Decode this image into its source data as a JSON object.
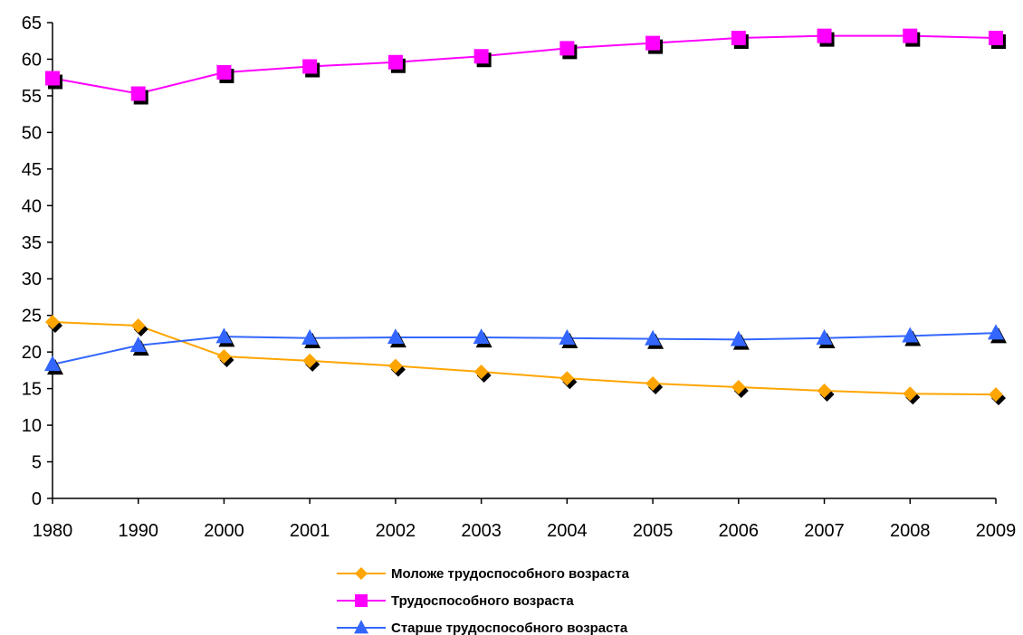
{
  "chart_data": {
    "type": "line",
    "title": "",
    "xlabel": "",
    "ylabel": "",
    "categories": [
      "1980",
      "1990",
      "2000",
      "2001",
      "2002",
      "2003",
      "2004",
      "2005",
      "2006",
      "2007",
      "2008",
      "2009"
    ],
    "ylim": [
      0,
      65
    ],
    "yticks": [
      0,
      5,
      10,
      15,
      20,
      25,
      30,
      35,
      40,
      45,
      50,
      55,
      60,
      65
    ],
    "grid": false,
    "legend_position": "bottom",
    "series": [
      {
        "name": "Моложе трудоспособного возраста",
        "marker": "diamond",
        "color": "#ffa500",
        "values": [
          24.1,
          23.6,
          19.4,
          18.8,
          18.1,
          17.3,
          16.4,
          15.7,
          15.2,
          14.7,
          14.3,
          14.2
        ]
      },
      {
        "name": "Трудоспособного возраста",
        "marker": "square",
        "color": "#ff00ff",
        "values": [
          57.4,
          55.3,
          58.2,
          59.0,
          59.6,
          60.4,
          61.5,
          62.2,
          62.9,
          63.2,
          63.2,
          62.9
        ]
      },
      {
        "name": "Старше трудоспособного возраста",
        "marker": "triangle",
        "color": "#3366ff",
        "values": [
          18.3,
          20.9,
          22.1,
          21.9,
          22.0,
          22.0,
          21.9,
          21.8,
          21.7,
          21.9,
          22.2,
          22.6
        ]
      }
    ]
  }
}
